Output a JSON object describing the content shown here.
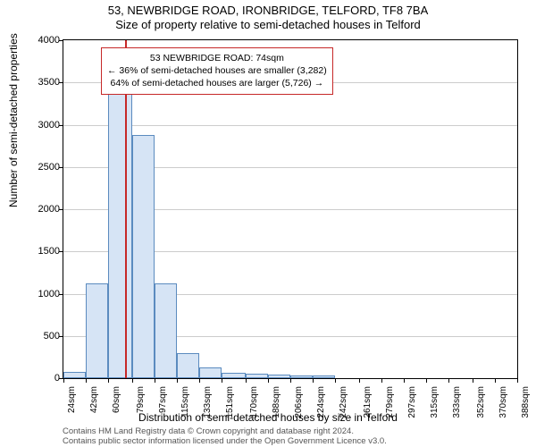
{
  "title_line1": "53, NEWBRIDGE ROAD, IRONBRIDGE, TELFORD, TF8 7BA",
  "title_line2": "Size of property relative to semi-detached houses in Telford",
  "y_axis_label": "Number of semi-detached properties",
  "x_axis_label": "Distribution of semi-detached houses by size in Telford",
  "footer_line1": "Contains HM Land Registry data © Crown copyright and database right 2024.",
  "footer_line2": "Contains public sector information licensed under the Open Government Licence v3.0.",
  "chart": {
    "type": "histogram",
    "ylim": [
      0,
      4000
    ],
    "ytick_step": 500,
    "y_ticks": [
      0,
      500,
      1000,
      1500,
      2000,
      2500,
      3000,
      3500,
      4000
    ],
    "x_ticks": [
      "24sqm",
      "42sqm",
      "60sqm",
      "79sqm",
      "97sqm",
      "115sqm",
      "133sqm",
      "151sqm",
      "170sqm",
      "188sqm",
      "206sqm",
      "224sqm",
      "242sqm",
      "261sqm",
      "279sqm",
      "297sqm",
      "315sqm",
      "333sqm",
      "352sqm",
      "370sqm",
      "388sqm"
    ],
    "x_min": 24,
    "x_max": 388,
    "bars": [
      {
        "x0": 24,
        "x1": 42,
        "value": 70
      },
      {
        "x0": 42,
        "x1": 60,
        "value": 1120
      },
      {
        "x0": 60,
        "x1": 79,
        "value": 3450
      },
      {
        "x0": 79,
        "x1": 97,
        "value": 2880
      },
      {
        "x0": 97,
        "x1": 115,
        "value": 1120
      },
      {
        "x0": 115,
        "x1": 133,
        "value": 300
      },
      {
        "x0": 133,
        "x1": 151,
        "value": 130
      },
      {
        "x0": 151,
        "x1": 170,
        "value": 60
      },
      {
        "x0": 170,
        "x1": 188,
        "value": 50
      },
      {
        "x0": 188,
        "x1": 206,
        "value": 40
      },
      {
        "x0": 206,
        "x1": 224,
        "value": 30
      },
      {
        "x0": 224,
        "x1": 242,
        "value": 30
      }
    ],
    "marker_x": 74,
    "bar_fill": "#d6e4f5",
    "bar_stroke": "#5b8bbf",
    "marker_color": "#c62828",
    "grid_color": "#cccccc",
    "background": "#ffffff"
  },
  "info_box": {
    "line1": "53 NEWBRIDGE ROAD: 74sqm",
    "line2": "← 36% of semi-detached houses are smaller (3,282)",
    "line3": "64% of semi-detached houses are larger (5,726) →"
  }
}
